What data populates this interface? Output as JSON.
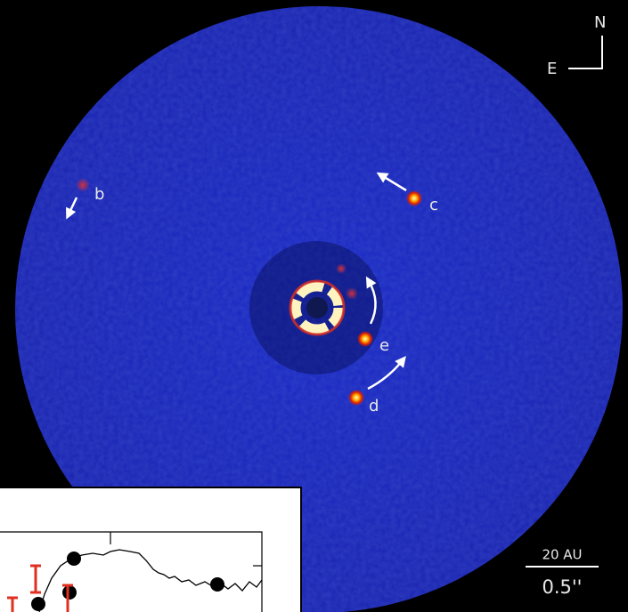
{
  "compass": {
    "north": "N",
    "east": "E"
  },
  "planets": [
    {
      "label": "b"
    },
    {
      "label": "c"
    },
    {
      "label": "e"
    },
    {
      "label": "d"
    }
  ],
  "scale_bar": {
    "distance": "20 AU",
    "angle": "0.5''"
  }
}
